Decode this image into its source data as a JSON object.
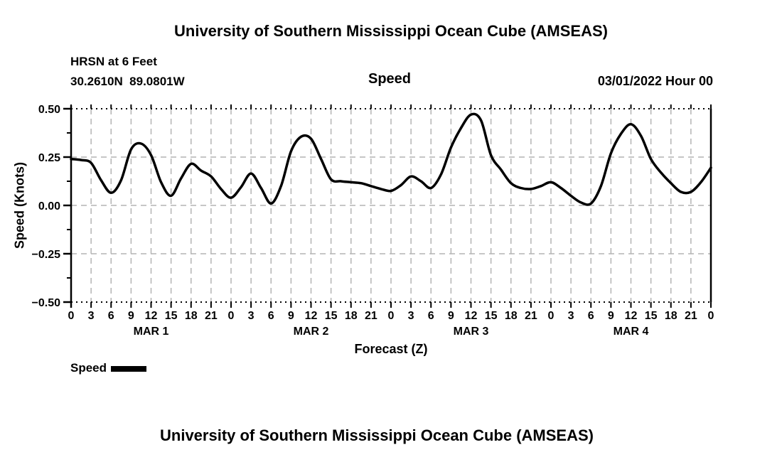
{
  "header": {
    "title": "University of Southern Mississippi Ocean Cube (AMSEAS)",
    "station": "HRSN at 6 Feet",
    "coordinates": "30.2610N  89.0801W",
    "panel_label": "Speed",
    "run_date": "03/01/2022 Hour 00"
  },
  "legend": {
    "label": "Speed",
    "swatch_color": "#000000"
  },
  "footer": {
    "next_panel_title": "University of Southern Mississippi Ocean Cube (AMSEAS)"
  },
  "colors": {
    "background": "#ffffff",
    "axis": "#000000",
    "grid": "#b3b3b3",
    "line": "#000000",
    "text": "#000000"
  },
  "chart_data": {
    "type": "line",
    "title": "Speed",
    "xlabel": "Forecast (Z)",
    "ylabel": "Speed (Knots)",
    "ylim": [
      -0.5,
      0.5
    ],
    "xlim_hours": [
      0,
      96
    ],
    "grid": true,
    "legend_position": "bottom-left",
    "y_tick_values": [
      0.5,
      0.25,
      0.0,
      -0.25,
      -0.5
    ],
    "y_tick_labels": [
      "0.50",
      "0.25",
      "0.00",
      "−0.25",
      "−0.50"
    ],
    "y_minor_tick_values": [
      0.375,
      0.125,
      -0.125,
      -0.375
    ],
    "x_tick_step_hours": 3,
    "x_hour_labels": [
      "0",
      "3",
      "6",
      "9",
      "12",
      "15",
      "18",
      "21"
    ],
    "x_final_label": "0",
    "day_labels": [
      "MAR 1",
      "MAR 2",
      "MAR 3",
      "MAR 4"
    ],
    "series": [
      {
        "name": "Speed",
        "color": "#000000",
        "x_hours": [
          0,
          1.5,
          3,
          4.5,
          6,
          7.5,
          9,
          10.5,
          12,
          13.5,
          15,
          16.5,
          18,
          19.5,
          21,
          22.5,
          24,
          25.5,
          27,
          28.5,
          30,
          31.5,
          33,
          34.5,
          36,
          37.5,
          39,
          40.5,
          42,
          43.5,
          45,
          46.5,
          48,
          49.5,
          51,
          52.5,
          54,
          55.5,
          57,
          58.5,
          60,
          61.5,
          63,
          64.5,
          66,
          67.5,
          69,
          70.5,
          72,
          73.5,
          75,
          76.5,
          78,
          79.5,
          81,
          82.5,
          84,
          85.5,
          87,
          88.5,
          90,
          91.5,
          93,
          94.5,
          96
        ],
        "values": [
          0.24,
          0.235,
          0.22,
          0.13,
          0.065,
          0.13,
          0.29,
          0.32,
          0.26,
          0.12,
          0.05,
          0.14,
          0.215,
          0.18,
          0.15,
          0.085,
          0.04,
          0.095,
          0.165,
          0.09,
          0.01,
          0.1,
          0.28,
          0.355,
          0.345,
          0.24,
          0.135,
          0.125,
          0.12,
          0.115,
          0.1,
          0.085,
          0.075,
          0.105,
          0.15,
          0.125,
          0.09,
          0.16,
          0.3,
          0.4,
          0.47,
          0.44,
          0.26,
          0.185,
          0.115,
          0.09,
          0.085,
          0.1,
          0.12,
          0.09,
          0.05,
          0.015,
          0.01,
          0.1,
          0.27,
          0.37,
          0.42,
          0.36,
          0.24,
          0.17,
          0.115,
          0.07,
          0.07,
          0.12,
          0.195
        ]
      }
    ]
  }
}
